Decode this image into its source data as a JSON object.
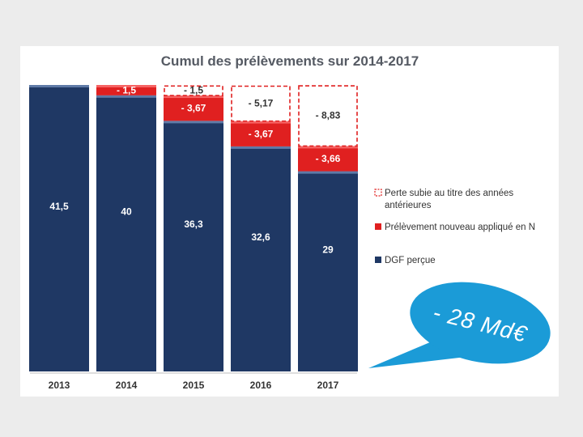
{
  "chart_data": {
    "type": "bar",
    "stacked": true,
    "title": "Cumul des prélèvements sur 2014-2017",
    "categories": [
      "2013",
      "2014",
      "2015",
      "2016",
      "2017"
    ],
    "series": [
      {
        "name": "DGF perçue",
        "color": "#1f3864",
        "values": [
          41.5,
          40,
          36.3,
          32.6,
          29
        ],
        "labels": [
          "41,5",
          "40",
          "36,3",
          "32,6",
          "29"
        ]
      },
      {
        "name": "Prélèvement nouveau appliqué en N",
        "color": "#e02020",
        "values": [
          0,
          1.5,
          3.67,
          3.67,
          3.66
        ],
        "labels": [
          "",
          "- 1,5",
          "- 3,67",
          "- 3,67",
          "- 3,66"
        ]
      },
      {
        "name": "Perte subie au titre des années antérieures",
        "color": "#e02020",
        "style": "dashed-outline",
        "values": [
          0,
          0,
          1.5,
          5.17,
          8.83
        ],
        "labels": [
          "",
          "",
          "- 1,5",
          "- 5,17",
          "- 8,83"
        ]
      }
    ],
    "ylim": [
      0,
      41.5
    ],
    "legend": [
      {
        "key": "loss",
        "text_lines": [
          "Perte subie au titre des années",
          "antérieures"
        ]
      },
      {
        "key": "new",
        "text_lines": [
          "Prélèvement nouveau appliqué en N"
        ]
      },
      {
        "key": "dgf",
        "text_lines": [
          "DGF perçue"
        ]
      }
    ],
    "annotation": {
      "text": "- 28 Md€",
      "color": "#1b9bd7"
    }
  }
}
